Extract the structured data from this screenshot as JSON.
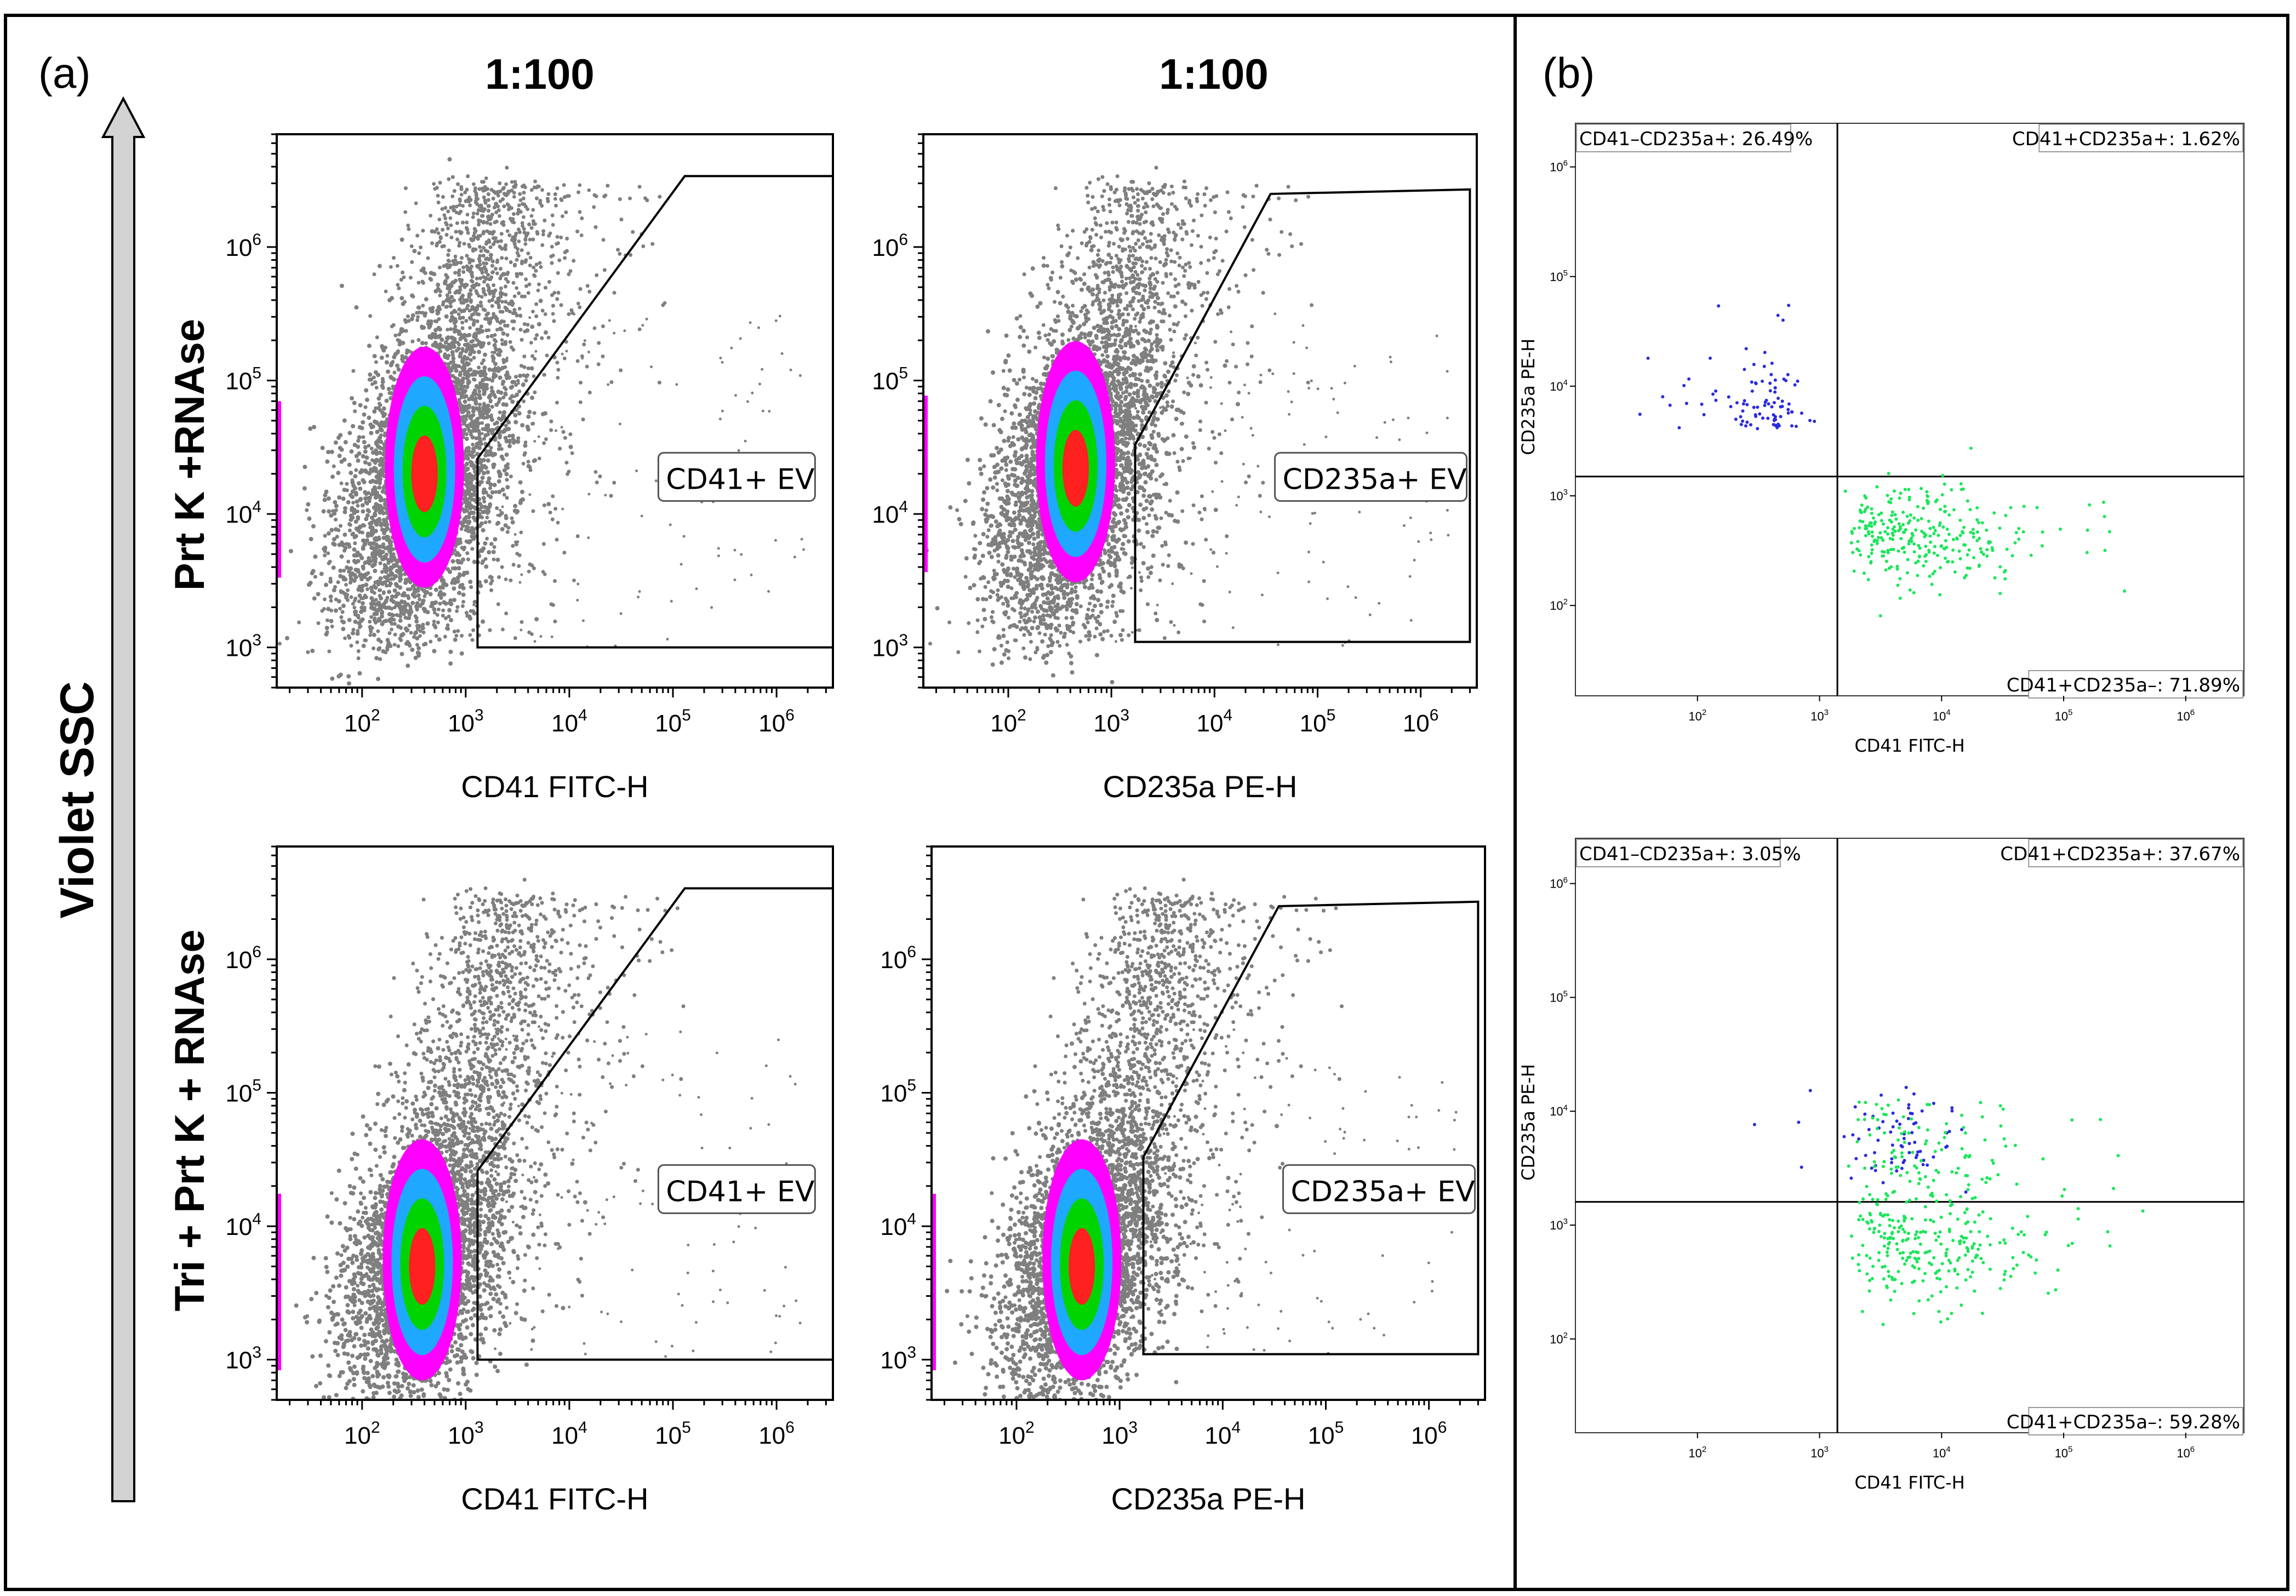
{
  "panels": {
    "a_label": "(a)",
    "b_label": "(b)"
  },
  "a": {
    "y_axis_label": "Violet SSC",
    "column_titles": [
      "1:100",
      "1:100"
    ],
    "row_titles": [
      "Prt K +RNAse",
      "Tri + Prt K + RNAse"
    ]
  },
  "chart_data": [
    {
      "type": "scatter",
      "id": "a-r1-c1",
      "xlabel": "CD41 FITC-H",
      "ylabel": "Violet SSC",
      "x_scale": "log",
      "y_scale": "log",
      "xlim": [
        15,
        3500000
      ],
      "ylim": [
        500,
        7000000
      ],
      "xticks": [
        "10^2",
        "10^3",
        "10^4",
        "10^5",
        "10^6"
      ],
      "yticks": [
        "10^3",
        "10^4",
        "10^5",
        "10^6"
      ],
      "gate_label": "CD41+ EV",
      "gate_polygon": [
        [
          1300,
          1000
        ],
        [
          1300,
          26000
        ],
        [
          130000,
          3400000
        ],
        [
          3500000,
          3400000
        ],
        [
          3500000,
          1000
        ]
      ],
      "density": {
        "x_mode": 400,
        "y_mode": 20000,
        "x_low": 15,
        "y_low": 1000,
        "y_high": 3000000
      }
    },
    {
      "type": "scatter",
      "id": "a-r1-c2",
      "xlabel": "CD235a PE-H",
      "ylabel": "Violet SSC",
      "x_scale": "log",
      "y_scale": "log",
      "xlim": [
        15,
        3500000
      ],
      "ylim": [
        500,
        7000000
      ],
      "xticks": [
        "10^2",
        "10^3",
        "10^4",
        "10^5",
        "10^6"
      ],
      "yticks": [
        "10^3",
        "10^4",
        "10^5",
        "10^6"
      ],
      "gate_label": "CD235a+ EV",
      "gate_polygon": [
        [
          1700,
          1100
        ],
        [
          1700,
          33000
        ],
        [
          35000,
          2500000
        ],
        [
          3000000,
          2700000
        ],
        [
          3000000,
          1100
        ]
      ],
      "density": {
        "x_mode": 450,
        "y_mode": 22000,
        "x_low": 15,
        "y_low": 1000,
        "y_high": 3000000
      }
    },
    {
      "type": "scatter",
      "id": "a-r2-c1",
      "xlabel": "CD41 FITC-H",
      "ylabel": "Violet SSC",
      "x_scale": "log",
      "y_scale": "log",
      "xlim": [
        15,
        3500000
      ],
      "ylim": [
        500,
        7000000
      ],
      "xticks": [
        "10^2",
        "10^3",
        "10^4",
        "10^5",
        "10^6"
      ],
      "yticks": [
        "10^3",
        "10^4",
        "10^5",
        "10^6"
      ],
      "gate_label": "CD41+ EV",
      "gate_polygon": [
        [
          1300,
          1000
        ],
        [
          1300,
          26000
        ],
        [
          130000,
          3400000
        ],
        [
          3500000,
          3400000
        ],
        [
          3500000,
          1000
        ]
      ],
      "density": {
        "x_mode": 380,
        "y_mode": 5000,
        "x_low": 15,
        "y_low": 2000,
        "y_high": 3000000
      }
    },
    {
      "type": "scatter",
      "id": "a-r2-c2",
      "xlabel": "CD235a PE-H",
      "ylabel": "Violet SSC",
      "x_scale": "log",
      "y_scale": "log",
      "xlim": [
        15,
        3500000
      ],
      "ylim": [
        500,
        7000000
      ],
      "xticks": [
        "10^2",
        "10^3",
        "10^4",
        "10^5",
        "10^6"
      ],
      "yticks": [
        "10^3",
        "10^4",
        "10^5",
        "10^6"
      ],
      "gate_label": "CD235a+ EV",
      "gate_polygon": [
        [
          1700,
          1100
        ],
        [
          1700,
          33000
        ],
        [
          35000,
          2500000
        ],
        [
          3000000,
          2700000
        ],
        [
          3000000,
          1100
        ]
      ],
      "density": {
        "x_mode": 430,
        "y_mode": 5000,
        "x_low": 15,
        "y_low": 2000,
        "y_high": 3000000
      }
    },
    {
      "type": "scatter",
      "id": "b-top",
      "xlabel": "CD41 FITC-H",
      "ylabel": "CD235a PE-H",
      "x_scale": "log",
      "y_scale": "log",
      "xlim": [
        10,
        3000000
      ],
      "ylim": [
        15,
        2500000
      ],
      "xticks": [
        "10^2",
        "10^3",
        "10^4",
        "10^5",
        "10^6"
      ],
      "yticks": [
        "10^2",
        "10^3",
        "10^4",
        "10^5",
        "10^6"
      ],
      "quadrant_x": 1400,
      "quadrant_y": 1500,
      "quadrants": {
        "upper_left": "CD41–CD235a+: 26.49%",
        "upper_right": "CD41+CD235a+: 1.62%",
        "lower_right": "CD41+CD235a–: 71.89%"
      },
      "quadrant_percent": {
        "upper_left": 26.49,
        "upper_right": 1.62,
        "lower_right": 71.89
      }
    },
    {
      "type": "scatter",
      "id": "b-bottom",
      "xlabel": "CD41 FITC-H",
      "ylabel": "CD235a PE-H",
      "x_scale": "log",
      "y_scale": "log",
      "xlim": [
        10,
        3000000
      ],
      "ylim": [
        15,
        2500000
      ],
      "xticks": [
        "10^2",
        "10^3",
        "10^4",
        "10^5",
        "10^6"
      ],
      "yticks": [
        "10^2",
        "10^3",
        "10^4",
        "10^5",
        "10^6"
      ],
      "quadrant_x": 1400,
      "quadrant_y": 1600,
      "quadrants": {
        "upper_left": "CD41–CD235a+: 3.05%",
        "upper_right": "CD41+CD235a+: 37.67%",
        "lower_right": "CD41+CD235a–: 59.28%"
      },
      "quadrant_percent": {
        "upper_left": 3.05,
        "upper_right": 37.67,
        "lower_right": 59.28
      }
    }
  ],
  "colors": {
    "frame": "#000000",
    "scatter_gray": "#7f7f7f",
    "density": [
      "#ff00ff",
      "#1fa8ff",
      "#00d400",
      "#ff2020"
    ],
    "quadrant_blue": "#2b2bdd",
    "quadrant_green": "#1ce65a",
    "arrow_fill": "#d3d3d3"
  }
}
